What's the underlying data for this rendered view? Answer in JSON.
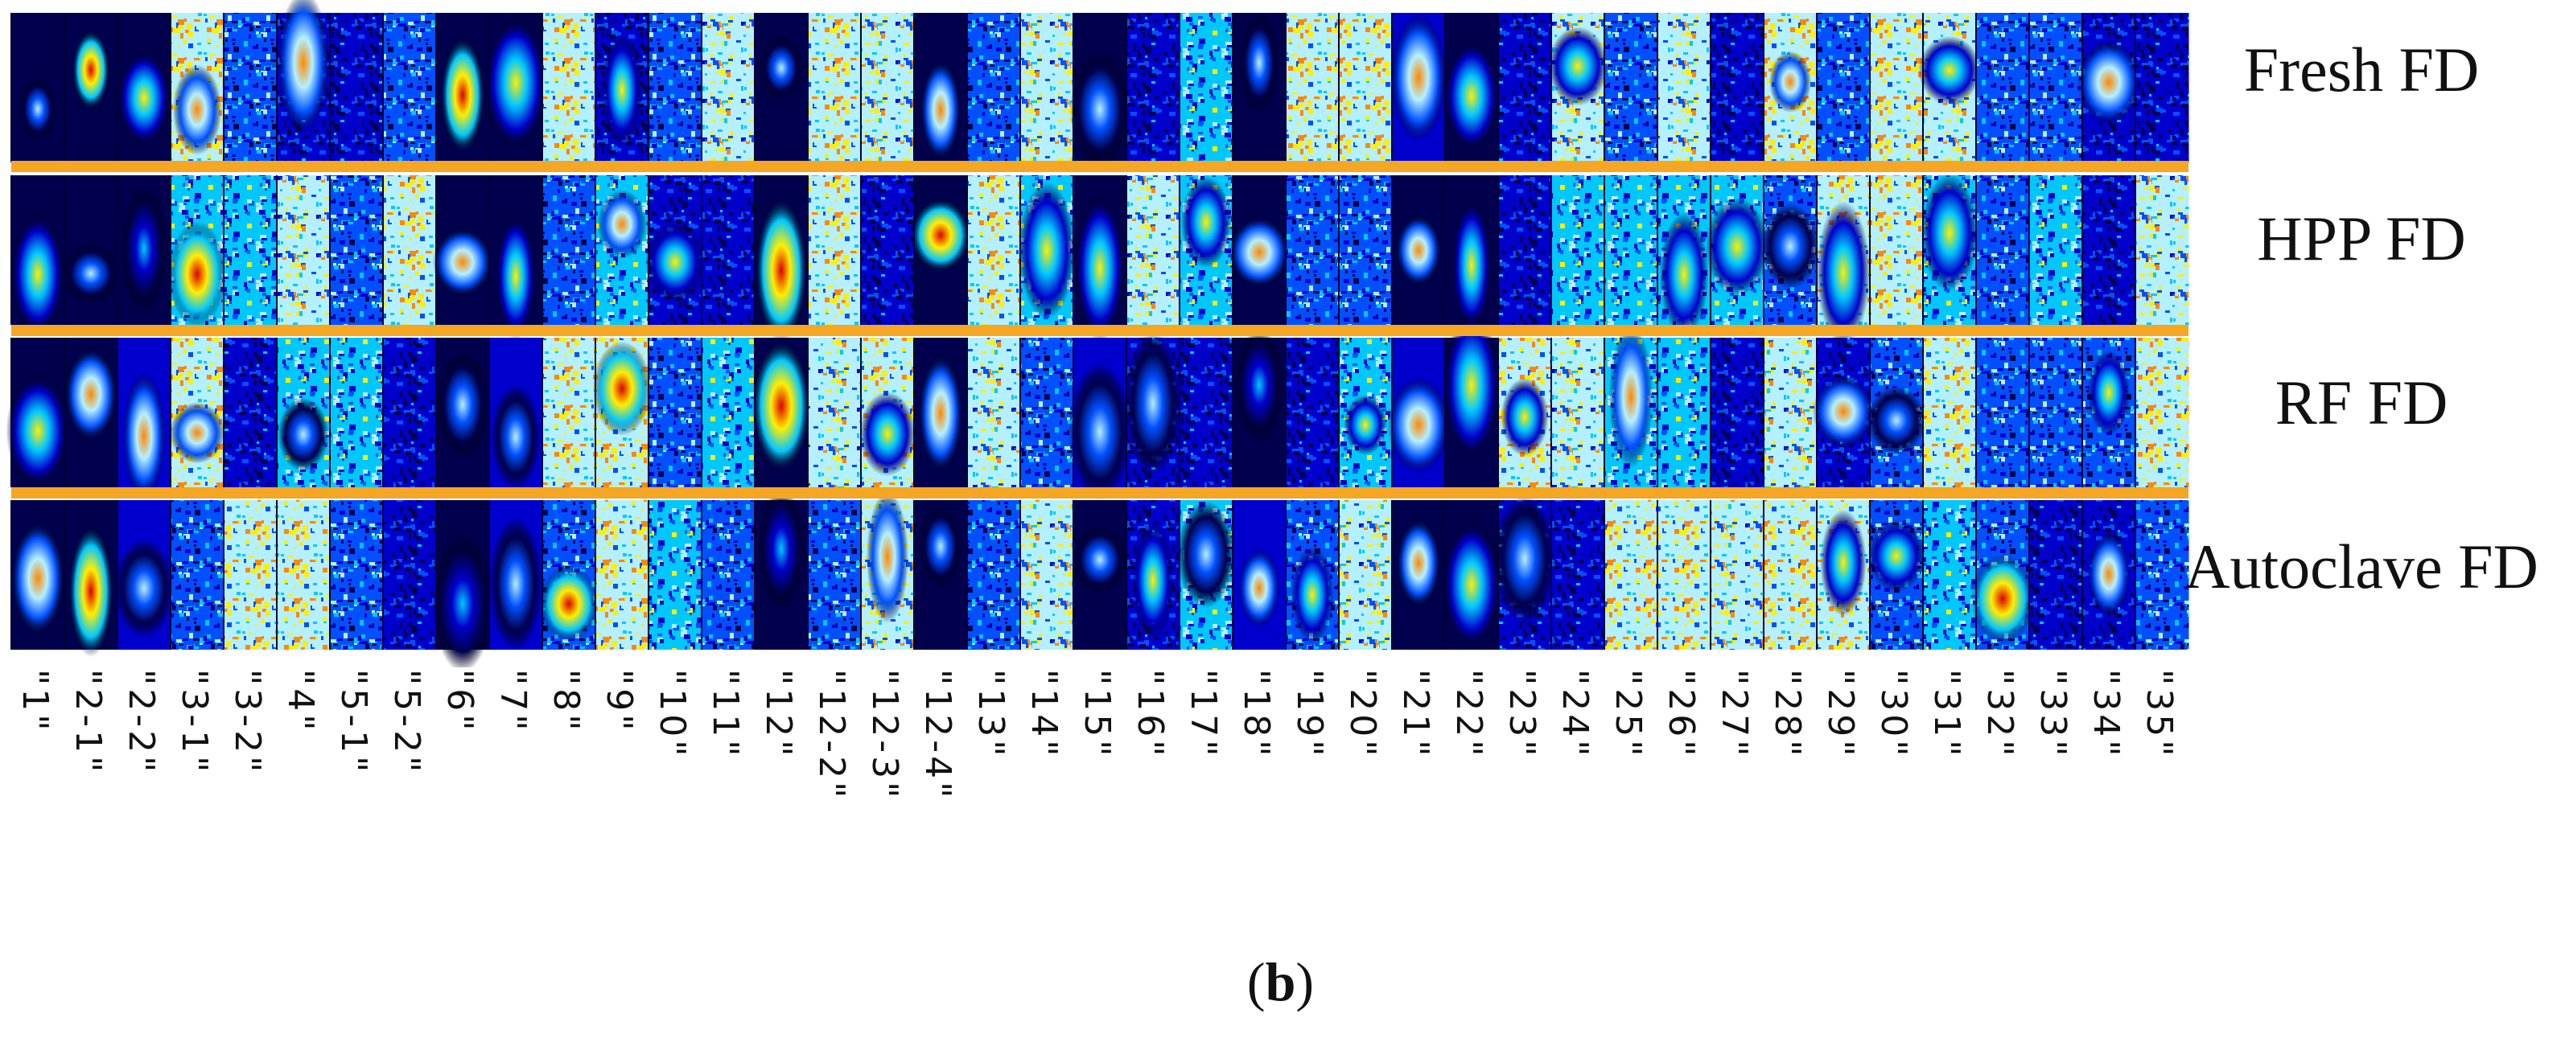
{
  "chart_data": {
    "type": "heatmap",
    "rows": [
      "Fresh FD",
      "HPP FD",
      "RF FD",
      "Autoclave FD"
    ],
    "columns": [
      "\"1\"",
      "\"2-1\"",
      "\"2-2\"",
      "\"3-1\"",
      "\"3-2\"",
      "\"4\"",
      "\"5-1\"",
      "\"5-2\"",
      "\"6\"",
      "\"7\"",
      "\"8\"",
      "\"9\"",
      "\"10\"",
      "\"11\"",
      "\"12\"",
      "\"12-2\"",
      "\"12-3\"",
      "\"12-4\"",
      "\"13\"",
      "\"14\"",
      "\"15\"",
      "\"16\"",
      "\"17\"",
      "\"18\"",
      "\"19\"",
      "\"20\"",
      "\"21\"",
      "\"22\"",
      "\"23\"",
      "\"24\"",
      "\"25\"",
      "\"26\"",
      "\"27\"",
      "\"28\"",
      "\"29\"",
      "\"30\"",
      "\"31\"",
      "\"32\"",
      "\"33\"",
      "\"34\"",
      "\"35\""
    ],
    "separator_color": "#f5a623",
    "colormap": [
      "#00004d",
      "#0000cc",
      "#0050ff",
      "#00c8ff",
      "#b4f0ff",
      "#ffee00",
      "#ff8800",
      "#dd0000"
    ],
    "panel_label": "(b)"
  }
}
